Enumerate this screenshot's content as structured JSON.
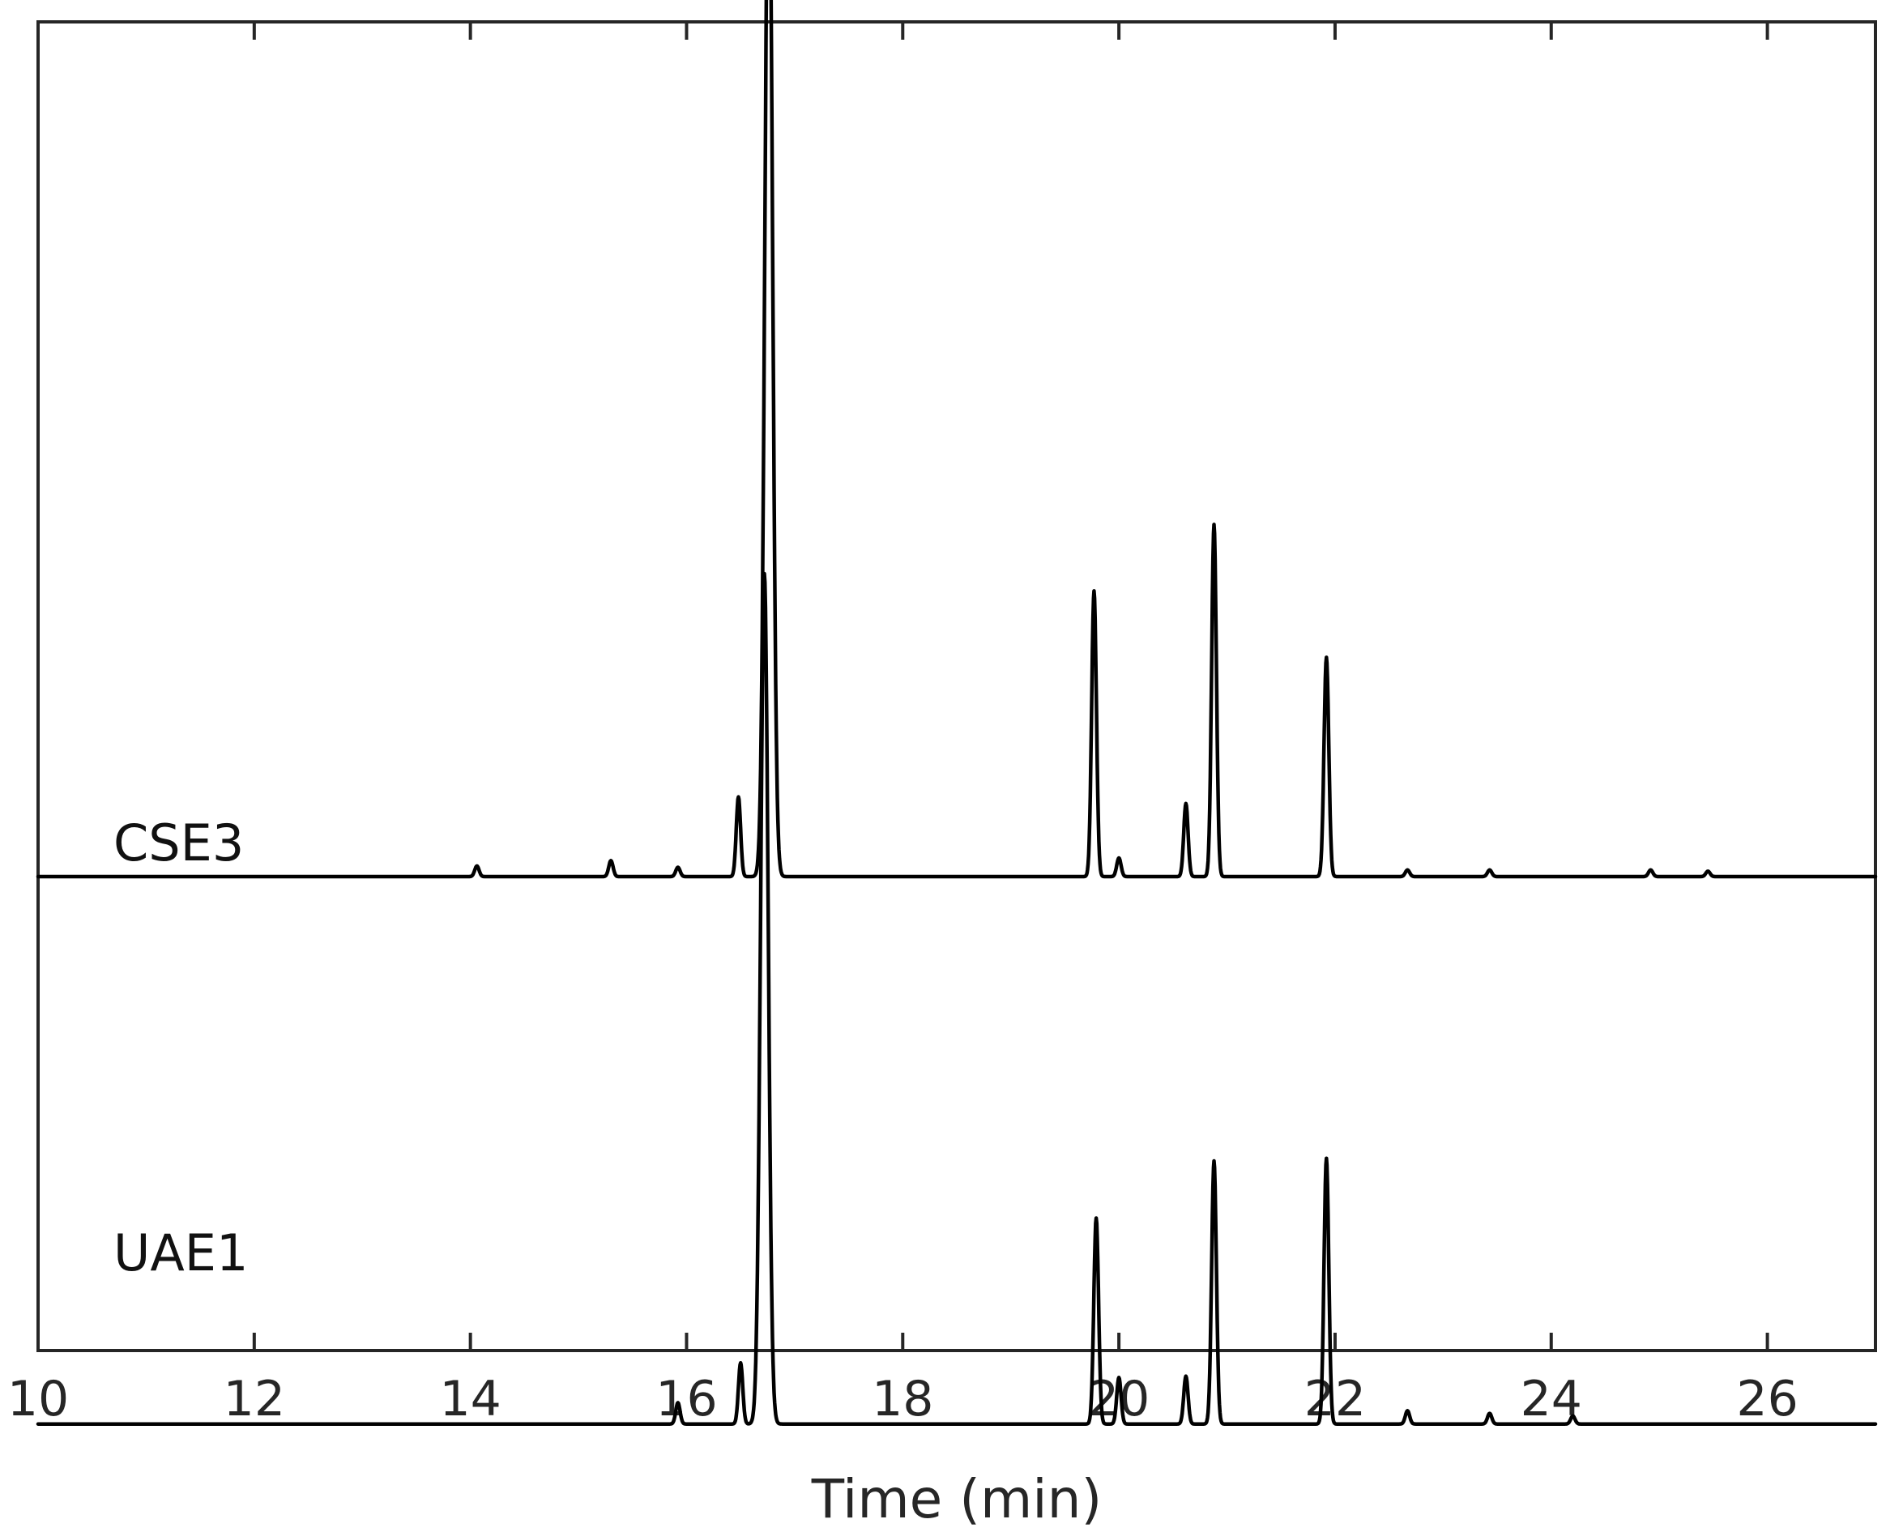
{
  "chart_data": {
    "type": "line",
    "title": "",
    "xlabel": "Time (min)",
    "ylabel": "",
    "xlim": [
      10,
      27
    ],
    "xticks": [
      10,
      12,
      14,
      16,
      18,
      20,
      22,
      24,
      26
    ],
    "xtick_labels": [
      "10",
      "12",
      "14",
      "16",
      "18",
      "20",
      "22",
      "24",
      "26"
    ],
    "y_axis_shown": false,
    "grid": false,
    "series_units": "relative intensity (fraction of axes height above CSE3 baseline)",
    "series": [
      {
        "name": "CSE3",
        "color": "#000000",
        "baseline": 0.0,
        "peaks": [
          {
            "t": 14.06,
            "h": 0.008
          },
          {
            "t": 15.3,
            "h": 0.012
          },
          {
            "t": 15.92,
            "h": 0.007
          },
          {
            "t": 16.48,
            "h": 0.06
          },
          {
            "t": 16.76,
            "h": 0.81
          },
          {
            "t": 19.77,
            "h": 0.215
          },
          {
            "t": 20.0,
            "h": 0.014
          },
          {
            "t": 20.62,
            "h": 0.055
          },
          {
            "t": 20.88,
            "h": 0.265
          },
          {
            "t": 21.92,
            "h": 0.165
          },
          {
            "t": 22.67,
            "h": 0.005
          },
          {
            "t": 23.43,
            "h": 0.005
          },
          {
            "t": 24.92,
            "h": 0.005
          },
          {
            "t": 25.45,
            "h": 0.004
          }
        ]
      },
      {
        "name": "UAE1",
        "color": "#000000",
        "baseline": -0.412,
        "peaks": [
          {
            "t": 15.92,
            "h": 0.016
          },
          {
            "t": 16.5,
            "h": 0.046
          },
          {
            "t": 16.72,
            "h": 0.64
          },
          {
            "t": 19.79,
            "h": 0.155
          },
          {
            "t": 20.0,
            "h": 0.035
          },
          {
            "t": 20.62,
            "h": 0.036
          },
          {
            "t": 20.88,
            "h": 0.198
          },
          {
            "t": 21.92,
            "h": 0.2
          },
          {
            "t": 22.67,
            "h": 0.01
          },
          {
            "t": 23.43,
            "h": 0.008
          },
          {
            "t": 24.2,
            "h": 0.006
          }
        ]
      }
    ]
  }
}
